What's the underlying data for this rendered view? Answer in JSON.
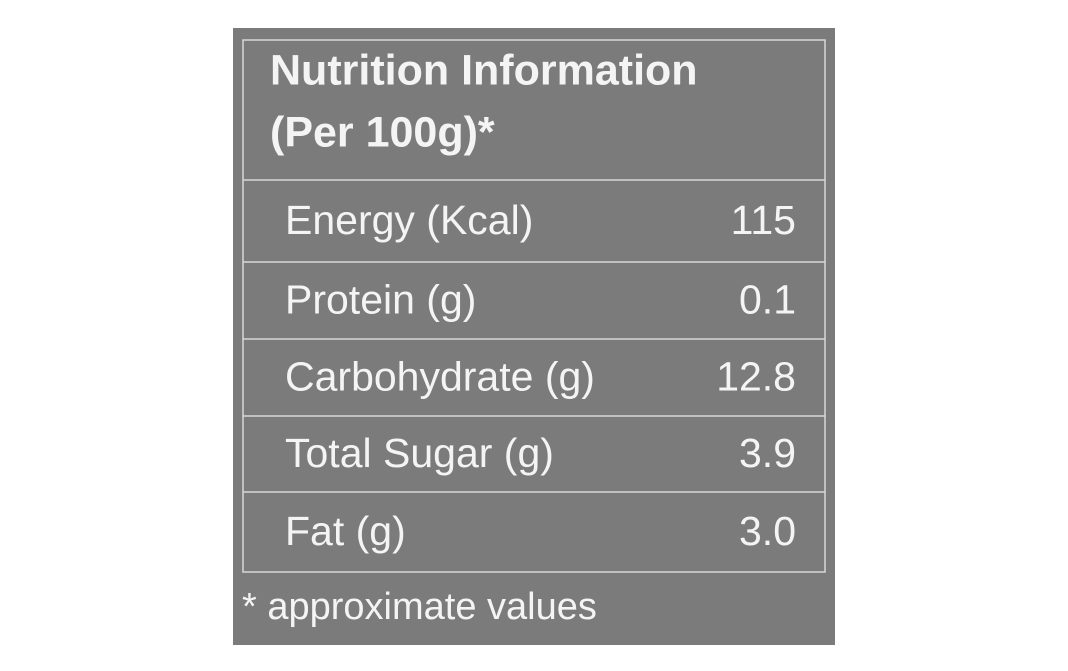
{
  "title": [
    "Nutrition Information",
    "(Per 100g)*"
  ],
  "table": {
    "rows": [
      [
        "Energy (Kcal)",
        "115"
      ],
      [
        "Protein (g)",
        "0.1"
      ],
      [
        "Carbohydrate (g)",
        "12.8"
      ],
      [
        "Total Sugar (g)",
        "3.9"
      ],
      [
        "Fat (g)",
        "3.0"
      ]
    ]
  },
  "footnote": "* approximate values"
}
